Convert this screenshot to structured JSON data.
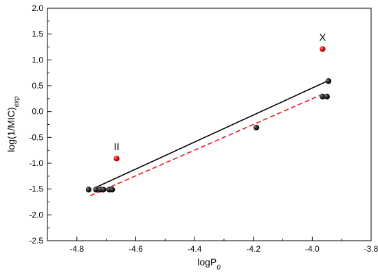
{
  "chart_data": {
    "type": "scatter",
    "xlabel_main": "logP",
    "xlabel_sub": "0",
    "ylabel_main": "log(1/MIC)",
    "ylabel_sub": "exp",
    "xlim": [
      -4.9,
      -3.8
    ],
    "ylim": [
      -2.5,
      2.0
    ],
    "x_ticks": [
      -4.8,
      -4.6,
      -4.4,
      -4.2,
      -4.0,
      -3.8
    ],
    "x_tick_labels": [
      "-4.8",
      "-4.6",
      "-4.4",
      "-4.2",
      "-4.0",
      "-3.8"
    ],
    "y_ticks": [
      -2.5,
      -2.0,
      -1.5,
      -1.0,
      -0.5,
      0.0,
      0.5,
      1.0,
      1.5,
      2.0
    ],
    "y_tick_labels": [
      "-2.5",
      "-2.0",
      "-1.5",
      "-1.0",
      "-0.5",
      "0.0",
      "0.5",
      "1.0",
      "1.5",
      "2.0"
    ],
    "grid": false,
    "colors": {
      "black_points": "#111111",
      "red_points": "#e8141b",
      "fit_solid": "#000000",
      "fit_dashed": "#e8141b"
    },
    "series": [
      {
        "marker": "black-sphere",
        "points": [
          {
            "x": -4.76,
            "y": -1.51
          },
          {
            "x": -4.735,
            "y": -1.51
          },
          {
            "x": -4.72,
            "y": -1.51
          },
          {
            "x": -4.71,
            "y": -1.51
          },
          {
            "x": -4.69,
            "y": -1.51
          },
          {
            "x": -4.68,
            "y": -1.51
          },
          {
            "x": -4.19,
            "y": -0.31
          },
          {
            "x": -3.965,
            "y": 0.29
          },
          {
            "x": -3.95,
            "y": 0.29
          },
          {
            "x": -3.945,
            "y": 0.59
          }
        ]
      },
      {
        "marker": "red-sphere",
        "points": [
          {
            "x": -4.665,
            "y": -0.91
          },
          {
            "x": -3.965,
            "y": 1.21
          }
        ]
      }
    ],
    "lines": [
      {
        "style": "solid",
        "x1": -4.74,
        "y1": -1.48,
        "x2": -3.945,
        "y2": 0.6
      },
      {
        "style": "dashed",
        "x1": -4.755,
        "y1": -1.63,
        "x2": -3.955,
        "y2": 0.36
      }
    ],
    "annotations": [
      {
        "text": "II",
        "x": -4.665,
        "y": -0.75
      },
      {
        "text": "X",
        "x": -3.965,
        "y": 1.37
      }
    ]
  }
}
